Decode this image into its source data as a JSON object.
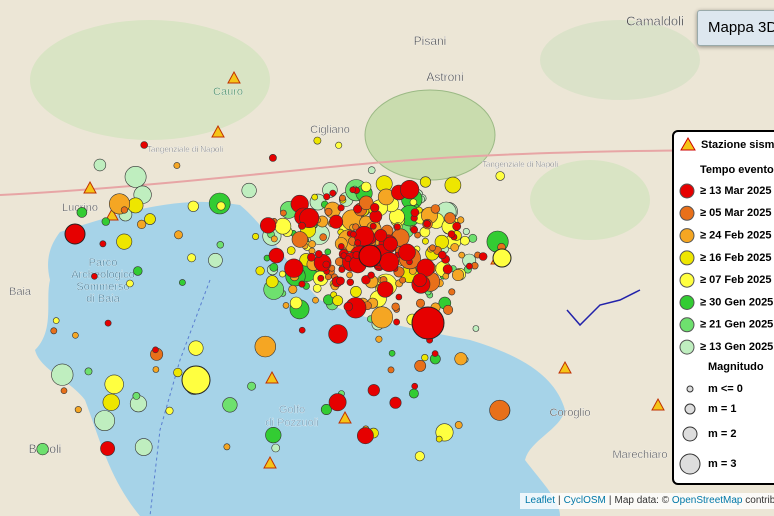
{
  "button": {
    "label": "Mappa 3D"
  },
  "legend": {
    "station_label": "Stazione sism",
    "time_title": "Tempo evento",
    "time_items": [
      {
        "label": "≥ 13 Mar 2025",
        "color": "#e60000"
      },
      {
        "label": "≥ 05 Mar 2025",
        "color": "#e8701a"
      },
      {
        "label": "≥ 24 Feb 2025",
        "color": "#f5a623"
      },
      {
        "label": "≥ 16 Feb 2025",
        "color": "#eee600"
      },
      {
        "label": "≥ 07 Feb 2025",
        "color": "#ffff40"
      },
      {
        "label": "≥ 30 Gen 2025",
        "color": "#33cc33"
      },
      {
        "label": "≥ 21 Gen 2025",
        "color": "#6ee06e"
      },
      {
        "label": "≥ 13 Gen 2025",
        "color": "#bfeebf"
      }
    ],
    "magnitude_title": "Magnitudo",
    "magnitude_items": [
      "m <= 0",
      "m = 1",
      "m = 2",
      "m = 3"
    ]
  },
  "map_labels": [
    "Camaldoli",
    "Pisani",
    "Astroni",
    "Cigliano",
    "Cauro",
    "Tangenziale di Napoli",
    "Tangenziale di Napoli",
    "Lucrino",
    "Parco",
    "Archeologico",
    "Sommerso",
    "di Baia",
    "Baia",
    "Bacoli",
    "Golfo",
    "di Pozzuoli",
    "Coroglio",
    "Marechiaro"
  ],
  "attribution": {
    "parts": [
      "Leaflet",
      "CyclOSM",
      "Map data: ©",
      "OpenStreetMap",
      "contrib"
    ],
    "separator": "|"
  }
}
